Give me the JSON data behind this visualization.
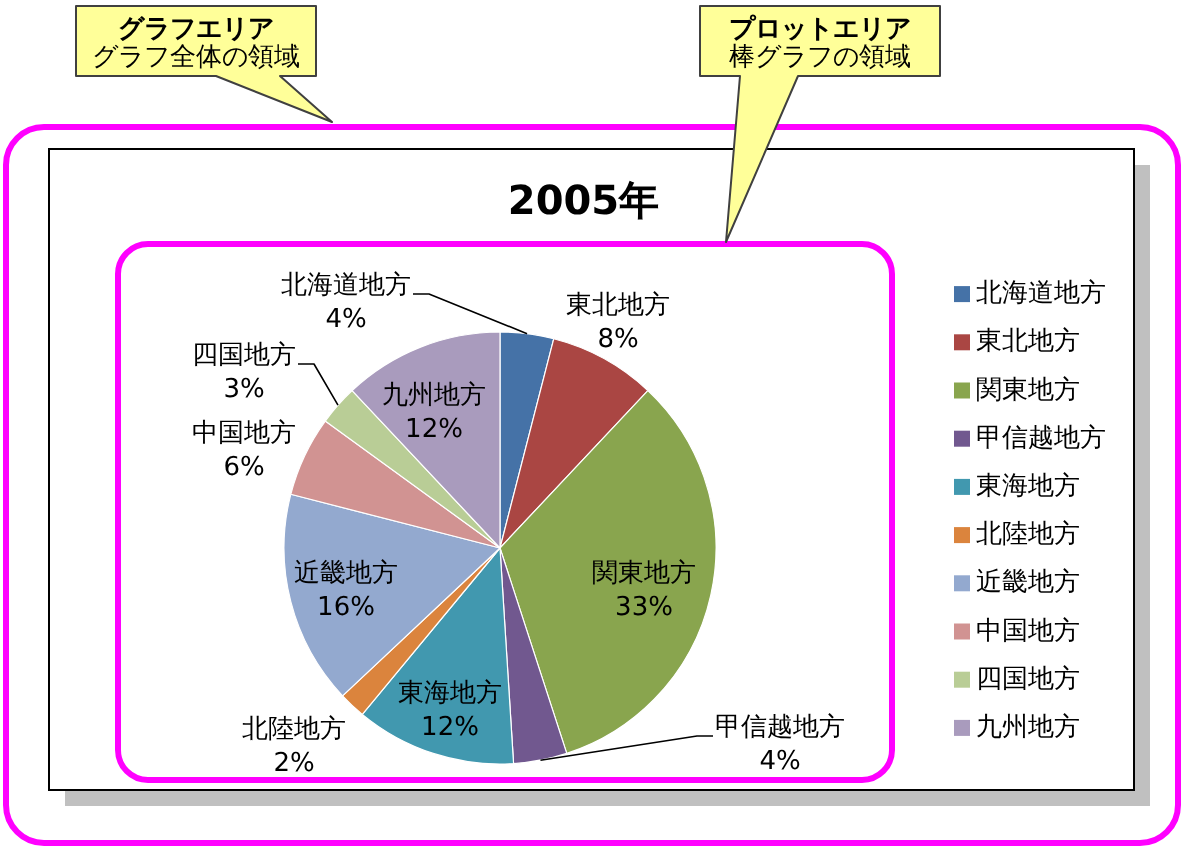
{
  "chart_data": {
    "type": "pie",
    "title": "2005年",
    "categories": [
      "北海道地方",
      "東北地方",
      "関東地方",
      "甲信越地方",
      "東海地方",
      "北陸地方",
      "近畿地方",
      "中国地方",
      "四国地方",
      "九州地方"
    ],
    "values": [
      4,
      8,
      33,
      4,
      12,
      2,
      16,
      6,
      3,
      12
    ],
    "value_labels": [
      "4%",
      "8%",
      "33%",
      "4%",
      "12%",
      "2%",
      "16%",
      "6%",
      "3%",
      "12%"
    ],
    "colors": [
      "#4572a7",
      "#aa4643",
      "#89a54e",
      "#71588f",
      "#4198af",
      "#db843d",
      "#93a9cf",
      "#d19392",
      "#b9cd96",
      "#a99bbd"
    ],
    "legend": "right",
    "annotations": [
      "グラフエリア",
      "グラフ全体の領域",
      "プロットエリア",
      "棒グラフの領域"
    ]
  }
}
